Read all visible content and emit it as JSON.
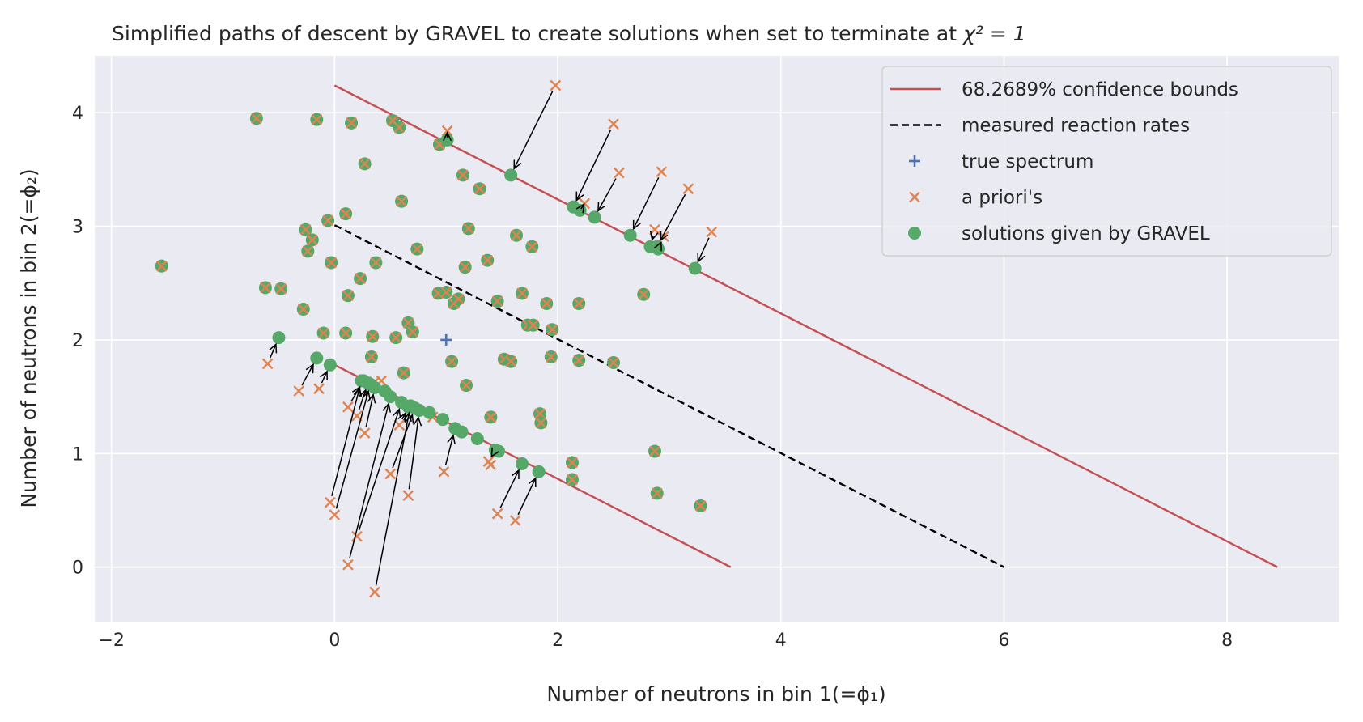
{
  "chart_data": {
    "type": "scatter",
    "title": "Simplified paths of descent by GRAVEL to create solutions when set to terminate at",
    "title_math": "χ² = 1",
    "xlabel": "Number of neutrons in bin 1(=ϕ₁)",
    "ylabel": "Number of neutrons in bin 2(=ϕ₂)",
    "xlim": [
      -2.15,
      9.0
    ],
    "ylim": [
      -0.48,
      4.5
    ],
    "xticks": [
      -2,
      0,
      2,
      4,
      6,
      8
    ],
    "yticks": [
      0,
      1,
      2,
      3,
      4
    ],
    "xtick_labels": [
      "−2",
      "0",
      "2",
      "4",
      "6",
      "8"
    ],
    "ytick_labels": [
      "0",
      "1",
      "2",
      "3",
      "4"
    ],
    "grid": true,
    "legend_position": "top-right",
    "colors": {
      "background": "#eaeaf2",
      "grid": "#ffffff",
      "confidence": "#c44e52",
      "measured": "#000000",
      "true": "#4c72b0",
      "apriori": "#dd8452",
      "solution": "#55a868",
      "arrow": "#000000"
    },
    "legend": [
      {
        "key": "confidence",
        "label": "68.2689% confidence bounds"
      },
      {
        "key": "measured",
        "label": "measured reaction rates"
      },
      {
        "key": "true",
        "label": "true spectrum"
      },
      {
        "key": "apriori",
        "label": "a priori's"
      },
      {
        "key": "solution",
        "label": "solutions given by GRAVEL"
      }
    ],
    "lines": [
      {
        "key": "confidence",
        "points": [
          [
            0,
            4.24
          ],
          [
            8.45,
            0
          ]
        ]
      },
      {
        "key": "confidence",
        "points": [
          [
            0,
            1.78
          ],
          [
            3.55,
            0
          ]
        ]
      },
      {
        "key": "measured",
        "points": [
          [
            0,
            3.01
          ],
          [
            6.0,
            0
          ]
        ]
      }
    ],
    "true_spectrum": [
      [
        1.0,
        2.0
      ]
    ],
    "coincident_points": [
      [
        -1.55,
        2.65
      ],
      [
        -0.7,
        3.95
      ],
      [
        -0.62,
        2.46
      ],
      [
        -0.48,
        2.45
      ],
      [
        -0.28,
        2.27
      ],
      [
        -0.26,
        2.97
      ],
      [
        -0.24,
        2.78
      ],
      [
        -0.2,
        2.88
      ],
      [
        -0.16,
        3.94
      ],
      [
        -0.1,
        2.06
      ],
      [
        -0.06,
        3.05
      ],
      [
        -0.03,
        2.68
      ],
      [
        0.1,
        3.11
      ],
      [
        0.12,
        2.39
      ],
      [
        0.1,
        2.06
      ],
      [
        0.15,
        3.91
      ],
      [
        0.23,
        2.54
      ],
      [
        0.27,
        3.55
      ],
      [
        0.33,
        1.85
      ],
      [
        0.34,
        2.03
      ],
      [
        0.37,
        2.68
      ],
      [
        0.52,
        3.93
      ],
      [
        0.55,
        2.02
      ],
      [
        0.58,
        3.87
      ],
      [
        0.6,
        3.22
      ],
      [
        0.62,
        1.71
      ],
      [
        0.66,
        2.15
      ],
      [
        0.7,
        2.07
      ],
      [
        0.74,
        2.8
      ],
      [
        0.94,
        3.72
      ],
      [
        0.93,
        2.41
      ],
      [
        1.0,
        2.42
      ],
      [
        1.05,
        1.81
      ],
      [
        1.07,
        2.32
      ],
      [
        1.11,
        2.36
      ],
      [
        1.15,
        3.45
      ],
      [
        1.17,
        2.64
      ],
      [
        1.18,
        1.6
      ],
      [
        1.2,
        2.98
      ],
      [
        1.3,
        3.33
      ],
      [
        1.37,
        2.7
      ],
      [
        1.4,
        1.32
      ],
      [
        1.46,
        2.34
      ],
      [
        1.52,
        1.83
      ],
      [
        1.58,
        1.81
      ],
      [
        1.63,
        2.92
      ],
      [
        1.68,
        2.41
      ],
      [
        1.73,
        2.13
      ],
      [
        1.77,
        2.82
      ],
      [
        1.78,
        2.13
      ],
      [
        1.84,
        1.35
      ],
      [
        1.85,
        1.27
      ],
      [
        1.9,
        2.32
      ],
      [
        1.94,
        1.85
      ],
      [
        1.95,
        2.09
      ],
      [
        2.13,
        0.92
      ],
      [
        2.13,
        0.77
      ],
      [
        2.19,
        2.32
      ],
      [
        2.19,
        1.82
      ],
      [
        2.5,
        1.8
      ],
      [
        2.77,
        2.4
      ],
      [
        2.87,
        1.02
      ],
      [
        2.89,
        0.65
      ],
      [
        3.28,
        0.54
      ]
    ],
    "descent_paths": [
      {
        "from": [
          1.98,
          4.24
        ],
        "to": [
          1.58,
          3.45
        ]
      },
      {
        "from": [
          1.01,
          3.84
        ],
        "to": [
          1.01,
          3.76
        ]
      },
      {
        "from": [
          2.5,
          3.9
        ],
        "to": [
          2.14,
          3.17
        ]
      },
      {
        "from": [
          2.24,
          3.2
        ],
        "to": [
          2.2,
          3.14
        ]
      },
      {
        "from": [
          2.55,
          3.47
        ],
        "to": [
          2.33,
          3.08
        ]
      },
      {
        "from": [
          2.93,
          3.48
        ],
        "to": [
          2.65,
          2.92
        ]
      },
      {
        "from": [
          2.87,
          2.97
        ],
        "to": [
          2.83,
          2.82
        ]
      },
      {
        "from": [
          2.95,
          2.91
        ],
        "to": [
          2.9,
          2.8
        ]
      },
      {
        "from": [
          3.17,
          3.33
        ],
        "to": [
          2.89,
          2.82
        ]
      },
      {
        "from": [
          3.38,
          2.95
        ],
        "to": [
          3.23,
          2.63
        ]
      },
      {
        "from": [
          -0.6,
          1.79
        ],
        "to": [
          -0.5,
          2.02
        ]
      },
      {
        "from": [
          -0.32,
          1.55
        ],
        "to": [
          -0.16,
          1.84
        ]
      },
      {
        "from": [
          -0.14,
          1.57
        ],
        "to": [
          -0.04,
          1.78
        ]
      },
      {
        "from": [
          -0.04,
          0.57
        ],
        "to": [
          0.24,
          1.64
        ]
      },
      {
        "from": [
          0.0,
          0.46
        ],
        "to": [
          0.32,
          1.61
        ]
      },
      {
        "from": [
          0.12,
          1.41
        ],
        "to": [
          0.26,
          1.64
        ]
      },
      {
        "from": [
          0.2,
          1.33
        ],
        "to": [
          0.3,
          1.62
        ]
      },
      {
        "from": [
          0.27,
          1.18
        ],
        "to": [
          0.36,
          1.58
        ]
      },
      {
        "from": [
          0.12,
          0.02
        ],
        "to": [
          0.5,
          1.5
        ]
      },
      {
        "from": [
          0.2,
          0.27
        ],
        "to": [
          0.6,
          1.45
        ]
      },
      {
        "from": [
          0.36,
          -0.22
        ],
        "to": [
          0.68,
          1.42
        ]
      },
      {
        "from": [
          0.5,
          0.82
        ],
        "to": [
          0.72,
          1.4
        ]
      },
      {
        "from": [
          0.58,
          1.25
        ],
        "to": [
          0.66,
          1.41
        ]
      },
      {
        "from": [
          0.66,
          0.63
        ],
        "to": [
          0.76,
          1.38
        ]
      },
      {
        "from": [
          0.98,
          0.84
        ],
        "to": [
          1.08,
          1.22
        ]
      },
      {
        "from": [
          1.38,
          0.93
        ],
        "to": [
          1.44,
          1.03
        ]
      },
      {
        "from": [
          1.46,
          0.47
        ],
        "to": [
          1.68,
          0.91
        ]
      },
      {
        "from": [
          1.62,
          0.41
        ],
        "to": [
          1.83,
          0.84
        ]
      }
    ],
    "extra_solutions": [
      [
        0.45,
        1.55
      ],
      [
        0.85,
        1.36
      ],
      [
        0.97,
        1.3
      ],
      [
        1.14,
        1.19
      ],
      [
        1.28,
        1.13
      ],
      [
        1.47,
        1.02
      ]
    ],
    "extra_apriori": [
      [
        0.36,
        1.63
      ],
      [
        0.42,
        1.64
      ],
      [
        1.4,
        0.9
      ],
      [
        0.88,
        1.32
      ]
    ]
  }
}
